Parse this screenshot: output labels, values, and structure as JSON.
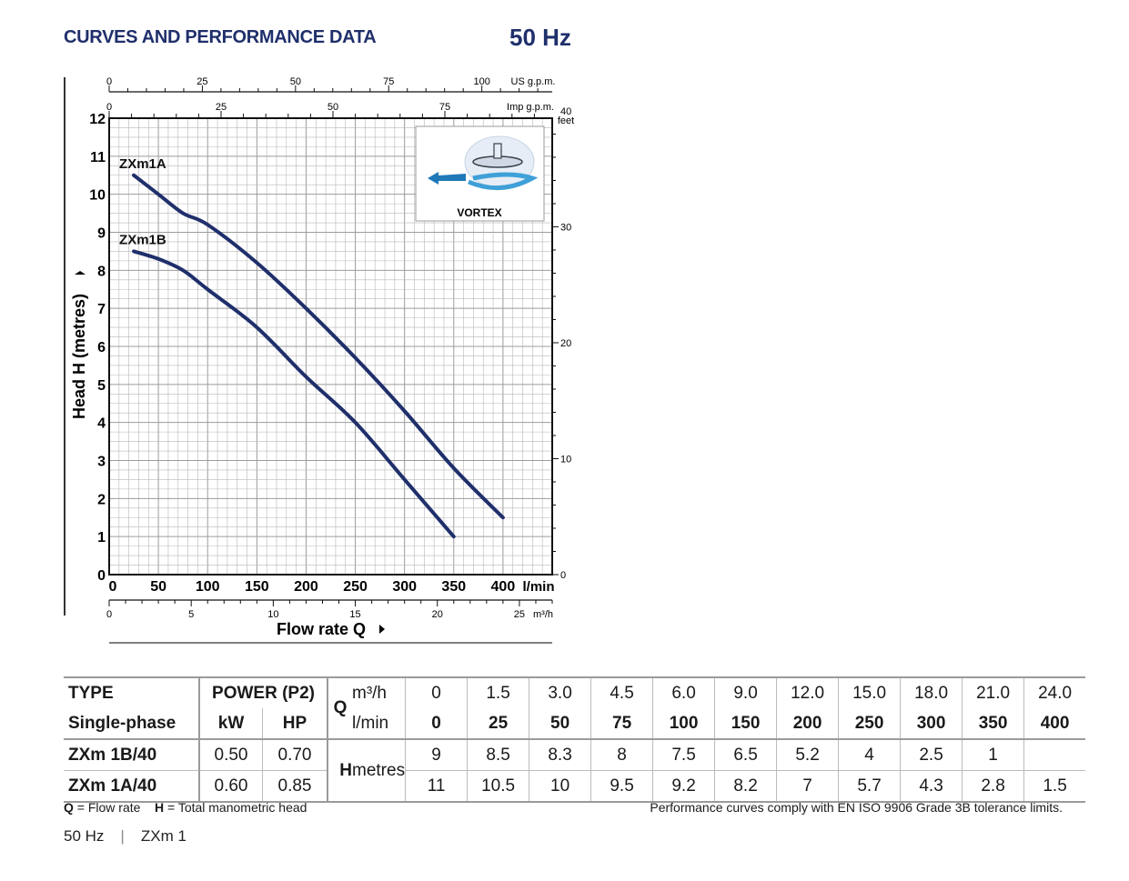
{
  "header": {
    "title": "CURVES AND PERFORMANCE DATA",
    "frequency": "50 Hz"
  },
  "chart_data": {
    "type": "line",
    "y_axis": {
      "label": "Head H (metres)",
      "range": [
        0,
        12
      ],
      "ticks": [
        "0",
        "1",
        "2",
        "3",
        "4",
        "5",
        "6",
        "7",
        "8",
        "9",
        "10",
        "11",
        "12"
      ]
    },
    "y_right_axis": {
      "unit": "feet",
      "ticks": [
        "0",
        "10",
        "20",
        "30",
        "40"
      ]
    },
    "x_axis": {
      "label": "Flow rate Q",
      "unit": "l/min",
      "range": [
        0,
        450
      ],
      "ticks": [
        "0",
        "50",
        "100",
        "150",
        "200",
        "250",
        "300",
        "350",
        "400"
      ]
    },
    "x_bottom_axis": {
      "unit": "m³/h",
      "ticks": [
        "0",
        "5",
        "10",
        "15",
        "20",
        "25"
      ]
    },
    "x_top_axes": [
      {
        "unit": "US g.p.m.",
        "ticks": [
          "0",
          "25",
          "50",
          "75",
          "100"
        ]
      },
      {
        "unit": "Imp g.p.m.",
        "ticks": [
          "0",
          "25",
          "50",
          "75"
        ]
      }
    ],
    "grid": true,
    "series": [
      {
        "name": "ZXm1A",
        "x": [
          25,
          50,
          75,
          100,
          150,
          200,
          250,
          300,
          350,
          400
        ],
        "y": [
          10.5,
          10,
          9.5,
          9.2,
          8.2,
          7,
          5.7,
          4.3,
          2.8,
          1.5
        ]
      },
      {
        "name": "ZXm1B",
        "x": [
          25,
          50,
          75,
          100,
          150,
          200,
          250,
          300,
          350
        ],
        "y": [
          8.5,
          8.3,
          8,
          7.5,
          6.5,
          5.2,
          4,
          2.5,
          1
        ]
      }
    ],
    "inset": {
      "label": "VORTEX"
    }
  },
  "table": {
    "type_label": "TYPE",
    "phase_label": "Single-phase",
    "power_label": "POWER (P2)",
    "kw_label": "kW",
    "hp_label": "HP",
    "q_label": "Q",
    "m3h_label": "m³/h",
    "lmin_label": "l/min",
    "h_label": "H",
    "metres_label": "metres",
    "m3h": [
      "0",
      "1.5",
      "3.0",
      "4.5",
      "6.0",
      "9.0",
      "12.0",
      "15.0",
      "18.0",
      "21.0",
      "24.0"
    ],
    "lmin": [
      "0",
      "25",
      "50",
      "75",
      "100",
      "150",
      "200",
      "250",
      "300",
      "350",
      "400"
    ],
    "rows": [
      {
        "model": "ZXm 1B/40",
        "kw": "0.50",
        "hp": "0.70",
        "h": [
          "9",
          "8.5",
          "8.3",
          "8",
          "7.5",
          "6.5",
          "5.2",
          "4",
          "2.5",
          "1",
          ""
        ]
      },
      {
        "model": "ZXm 1A/40",
        "kw": "0.60",
        "hp": "0.85",
        "h": [
          "11",
          "10.5",
          "10",
          "9.5",
          "9.2",
          "8.2",
          "7",
          "5.7",
          "4.3",
          "2.8",
          "1.5"
        ]
      }
    ]
  },
  "footer": {
    "q_abbr": "Q",
    "q_def": "= Flow rate",
    "h_abbr": "H",
    "h_def": "= Total manometric head",
    "note": "Performance curves comply with EN ISO 9906 Grade 3B tolerance limits."
  },
  "page_ref": {
    "freq": "50 Hz",
    "model": "ZXm 1"
  },
  "colors": {
    "title": "#1f2f6b",
    "curve": "#1f2f6b",
    "grid": "#b8b8b8",
    "rule": "#9a9a9a"
  }
}
